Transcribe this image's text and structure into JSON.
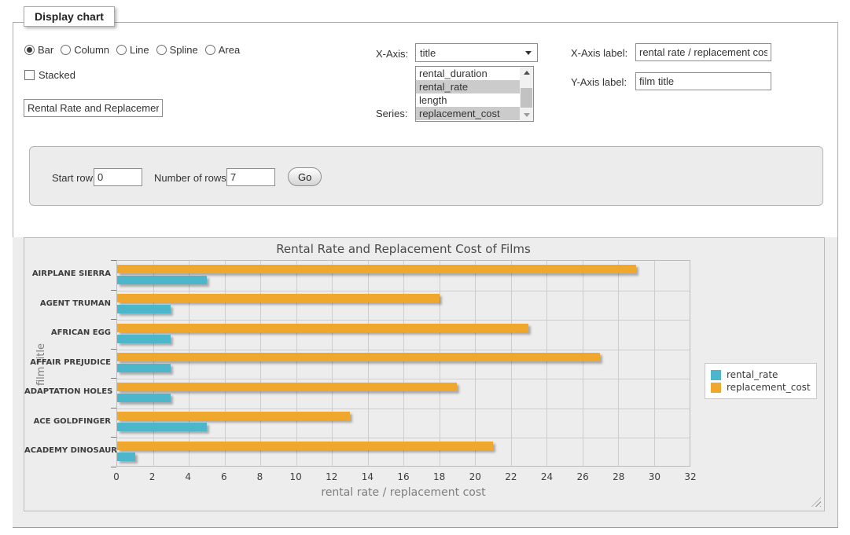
{
  "panel": {
    "legend_title": "Display chart"
  },
  "chart_type": {
    "options": [
      {
        "label": "Bar",
        "selected": true
      },
      {
        "label": "Column",
        "selected": false
      },
      {
        "label": "Line",
        "selected": false
      },
      {
        "label": "Spline",
        "selected": false
      },
      {
        "label": "Area",
        "selected": false
      }
    ]
  },
  "stacked_checkbox": {
    "label": "Stacked",
    "checked": false
  },
  "chart_title_input": {
    "value": "Rental Rate and Replacement Cost of Films"
  },
  "x_axis_select": {
    "label": "X-Axis:",
    "value": "title"
  },
  "series_listbox": {
    "label": "Series:",
    "options": [
      {
        "label": "rental_duration",
        "selected": false
      },
      {
        "label": "rental_rate",
        "selected": true
      },
      {
        "label": "length",
        "selected": false
      },
      {
        "label": "replacement_cost",
        "selected": true
      }
    ]
  },
  "x_axis_label_input": {
    "label": "X-Axis label:",
    "value": "rental rate / replacement cost"
  },
  "y_axis_label_input": {
    "label": "Y-Axis label:",
    "value": "film title"
  },
  "rows_controls": {
    "start_row_label": "Start row:",
    "start_row_value": "0",
    "number_of_rows_label": "Number of rows:",
    "number_of_rows_value": "7",
    "go_button_label": "Go"
  },
  "chart_data": {
    "type": "bar",
    "orientation": "horizontal",
    "title": "Rental Rate and Replacement Cost of Films",
    "categories": [
      "AIRPLANE SIERRA",
      "AGENT TRUMAN",
      "AFRICAN EGG",
      "AFFAIR PREJUDICE",
      "ADAPTATION HOLES",
      "ACE GOLDFINGER",
      "ACADEMY DINOSAUR"
    ],
    "series": [
      {
        "name": "rental_rate",
        "color": "#4cb6cb",
        "values": [
          5,
          3,
          3,
          3,
          3,
          5,
          1
        ]
      },
      {
        "name": "replacement_cost",
        "color": "#efa72e",
        "values": [
          29,
          18,
          23,
          27,
          19,
          13,
          21
        ]
      }
    ],
    "xlabel": "rental rate / replacement cost",
    "ylabel": "film title",
    "xlim": [
      0,
      32
    ],
    "xtick_step": 2,
    "grid": true,
    "legend_position": "right",
    "bar_shadow": true
  }
}
